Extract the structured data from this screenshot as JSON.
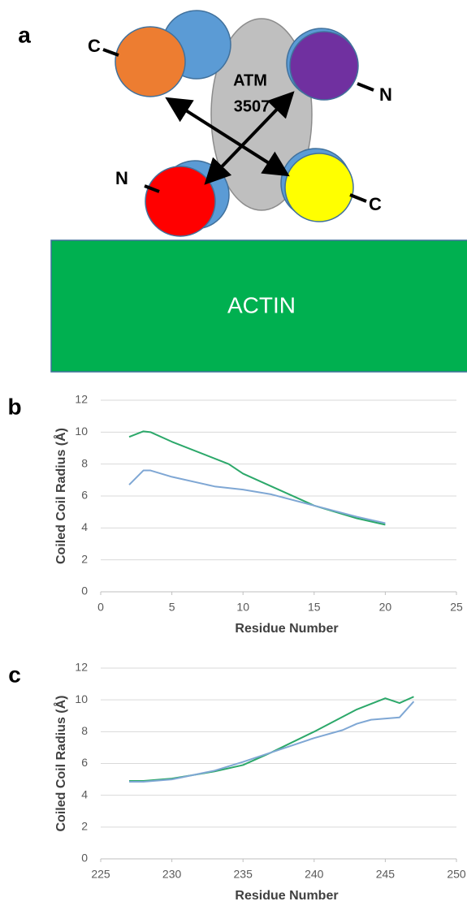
{
  "diagram": {
    "panel_label": "a",
    "terminal_labels": [
      "C",
      "N",
      "N",
      "C"
    ],
    "protein_label": [
      "ATM",
      "3507"
    ],
    "actin_label": "ACTIN"
  },
  "chart_data": [
    {
      "type": "line",
      "panel_label": "b",
      "x_label": "Residue Number",
      "y_label": "Coiled Coil Radius (Å)",
      "xlim": [
        0,
        25
      ],
      "xticks": [
        0,
        5,
        10,
        15,
        20,
        25
      ],
      "ylim": [
        0,
        12
      ],
      "yticks": [
        0,
        2,
        4,
        6,
        8,
        10,
        12
      ],
      "grid": true,
      "series": [
        {
          "color": "#2ca86a",
          "x": [
            2,
            3,
            3.5,
            5,
            9,
            10,
            12,
            15,
            18,
            20
          ],
          "values": [
            9.7,
            10.05,
            10.0,
            9.4,
            8.0,
            7.4,
            6.6,
            5.4,
            4.6,
            4.2
          ]
        },
        {
          "color": "#7fa7d4",
          "x": [
            2,
            3,
            3.5,
            5,
            8,
            10,
            12,
            15,
            18,
            20
          ],
          "values": [
            6.7,
            7.6,
            7.6,
            7.2,
            6.6,
            6.4,
            6.1,
            5.4,
            4.7,
            4.3
          ]
        }
      ]
    },
    {
      "type": "line",
      "panel_label": "c",
      "x_label": "Residue Number",
      "y_label": "Coiled Coil Radius (Å)",
      "xlim": [
        225,
        250
      ],
      "xticks": [
        225,
        230,
        235,
        240,
        245,
        250
      ],
      "ylim": [
        0,
        12
      ],
      "yticks": [
        0,
        2,
        4,
        6,
        8,
        10,
        12
      ],
      "grid": true,
      "series": [
        {
          "color": "#2ca86a",
          "x": [
            227,
            228,
            230,
            233,
            235,
            237,
            240,
            243,
            245,
            246,
            247
          ],
          "values": [
            4.9,
            4.9,
            5.05,
            5.5,
            5.9,
            6.7,
            8.0,
            9.4,
            10.1,
            9.8,
            10.2
          ]
        },
        {
          "color": "#7fa7d4",
          "x": [
            227,
            228,
            230,
            233,
            235,
            237,
            240,
            242,
            243,
            244,
            246,
            247
          ],
          "values": [
            4.85,
            4.85,
            5.0,
            5.55,
            6.1,
            6.7,
            7.6,
            8.1,
            8.5,
            8.75,
            8.9,
            9.9
          ]
        }
      ]
    }
  ]
}
